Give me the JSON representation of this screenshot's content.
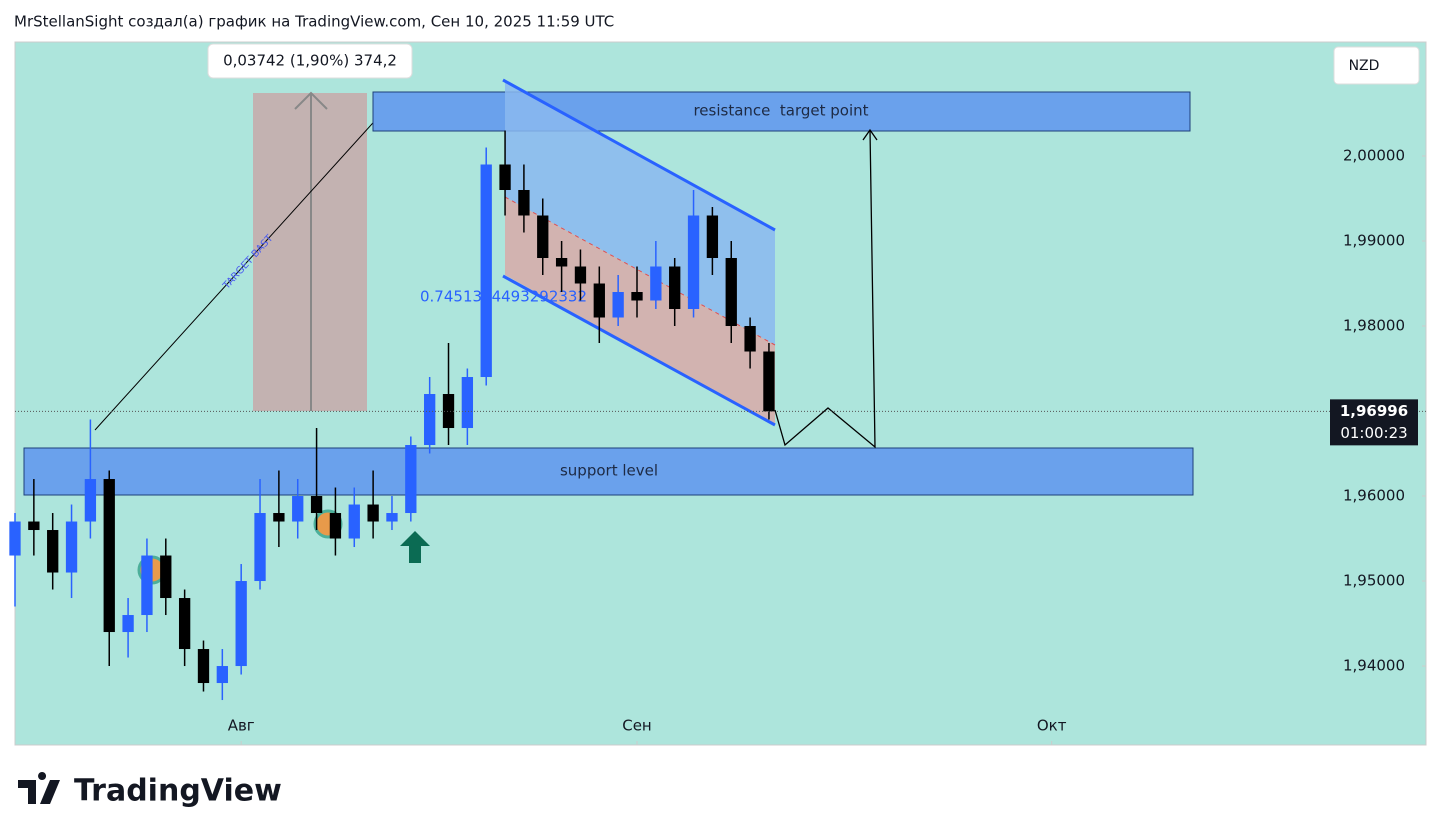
{
  "header": "MrStellanSight создал(а) график на TradingView.com, Сен 10, 2025 11:59 UTC",
  "logo": "TradingView",
  "chart_data": {
    "type": "candlestick",
    "currency": "NZD",
    "x": [
      -12,
      -11,
      -10,
      -9,
      -8,
      -7,
      -6,
      -5,
      -4,
      -3,
      -2,
      -1,
      0,
      1,
      2,
      3,
      4,
      5,
      6,
      7,
      8,
      9,
      10,
      11,
      12,
      13,
      14,
      15,
      16,
      17,
      18,
      19,
      20,
      21,
      22,
      23,
      24,
      25,
      26,
      27,
      28
    ],
    "open": [
      1.953,
      1.957,
      1.956,
      1.951,
      1.957,
      1.962,
      1.944,
      1.946,
      1.953,
      1.948,
      1.942,
      1.938,
      1.94,
      1.95,
      1.958,
      1.957,
      1.96,
      1.958,
      1.955,
      1.959,
      1.957,
      1.958,
      1.966,
      1.972,
      1.968,
      1.974,
      1.999,
      1.996,
      1.993,
      1.988,
      1.987,
      1.985,
      1.981,
      1.984,
      1.983,
      1.987,
      1.982,
      1.993,
      1.988,
      1.98,
      1.977
    ],
    "high": [
      1.958,
      1.962,
      1.958,
      1.959,
      1.969,
      1.963,
      1.948,
      1.955,
      1.955,
      1.949,
      1.943,
      1.942,
      1.952,
      1.962,
      1.963,
      1.962,
      1.968,
      1.961,
      1.961,
      1.963,
      1.96,
      1.967,
      1.974,
      1.978,
      1.975,
      2.001,
      2.003,
      1.999,
      1.995,
      1.99,
      1.989,
      1.987,
      1.986,
      1.987,
      1.99,
      1.988,
      1.996,
      1.994,
      1.99,
      1.981,
      1.978
    ],
    "low": [
      1.947,
      1.953,
      1.949,
      1.948,
      1.955,
      1.94,
      1.941,
      1.944,
      1.946,
      1.94,
      1.937,
      1.936,
      1.939,
      1.949,
      1.954,
      1.955,
      1.956,
      1.953,
      1.954,
      1.955,
      1.956,
      1.957,
      1.965,
      1.966,
      1.966,
      1.973,
      1.993,
      1.991,
      1.986,
      1.984,
      1.983,
      1.978,
      1.98,
      1.981,
      1.982,
      1.98,
      1.981,
      1.986,
      1.978,
      1.975,
      1.969
    ],
    "close": [
      1.957,
      1.956,
      1.951,
      1.957,
      1.962,
      1.944,
      1.946,
      1.953,
      1.948,
      1.942,
      1.938,
      1.94,
      1.95,
      1.958,
      1.957,
      1.96,
      1.958,
      1.955,
      1.959,
      1.957,
      1.958,
      1.966,
      1.972,
      1.968,
      1.974,
      1.999,
      1.996,
      1.993,
      1.988,
      1.987,
      1.985,
      1.981,
      1.984,
      1.983,
      1.987,
      1.982,
      1.993,
      1.988,
      1.98,
      1.977,
      1.96996
    ],
    "up_color": "#2962ff",
    "down_color": "#000000",
    "xlim": [
      -12,
      62.86
    ],
    "xticks": [
      {
        "value": 0,
        "label": "Авг"
      },
      {
        "value": 21,
        "label": "Сен"
      },
      {
        "value": 43,
        "label": "Окт"
      }
    ],
    "ylim": [
      1.93071,
      2.01341
    ],
    "yticks": [
      {
        "value": 2.0,
        "label": "2,00000"
      },
      {
        "value": 1.99,
        "label": "1,99000"
      },
      {
        "value": 1.98,
        "label": "1,98000"
      },
      {
        "value": 1.96,
        "label": "1,96000"
      },
      {
        "value": 1.95,
        "label": "1,95000"
      },
      {
        "value": 1.94,
        "label": "1,94000"
      }
    ],
    "last_price": {
      "value": 1.96996,
      "label": "1,96996",
      "countdown": "01:00:23"
    },
    "annotations": {
      "resistance": "resistance  target point",
      "support": "support level",
      "measure": "0,03742 (1,90%) 374,2",
      "ratio": "0.7451394493292332",
      "target": "TARGET BAST"
    }
  }
}
